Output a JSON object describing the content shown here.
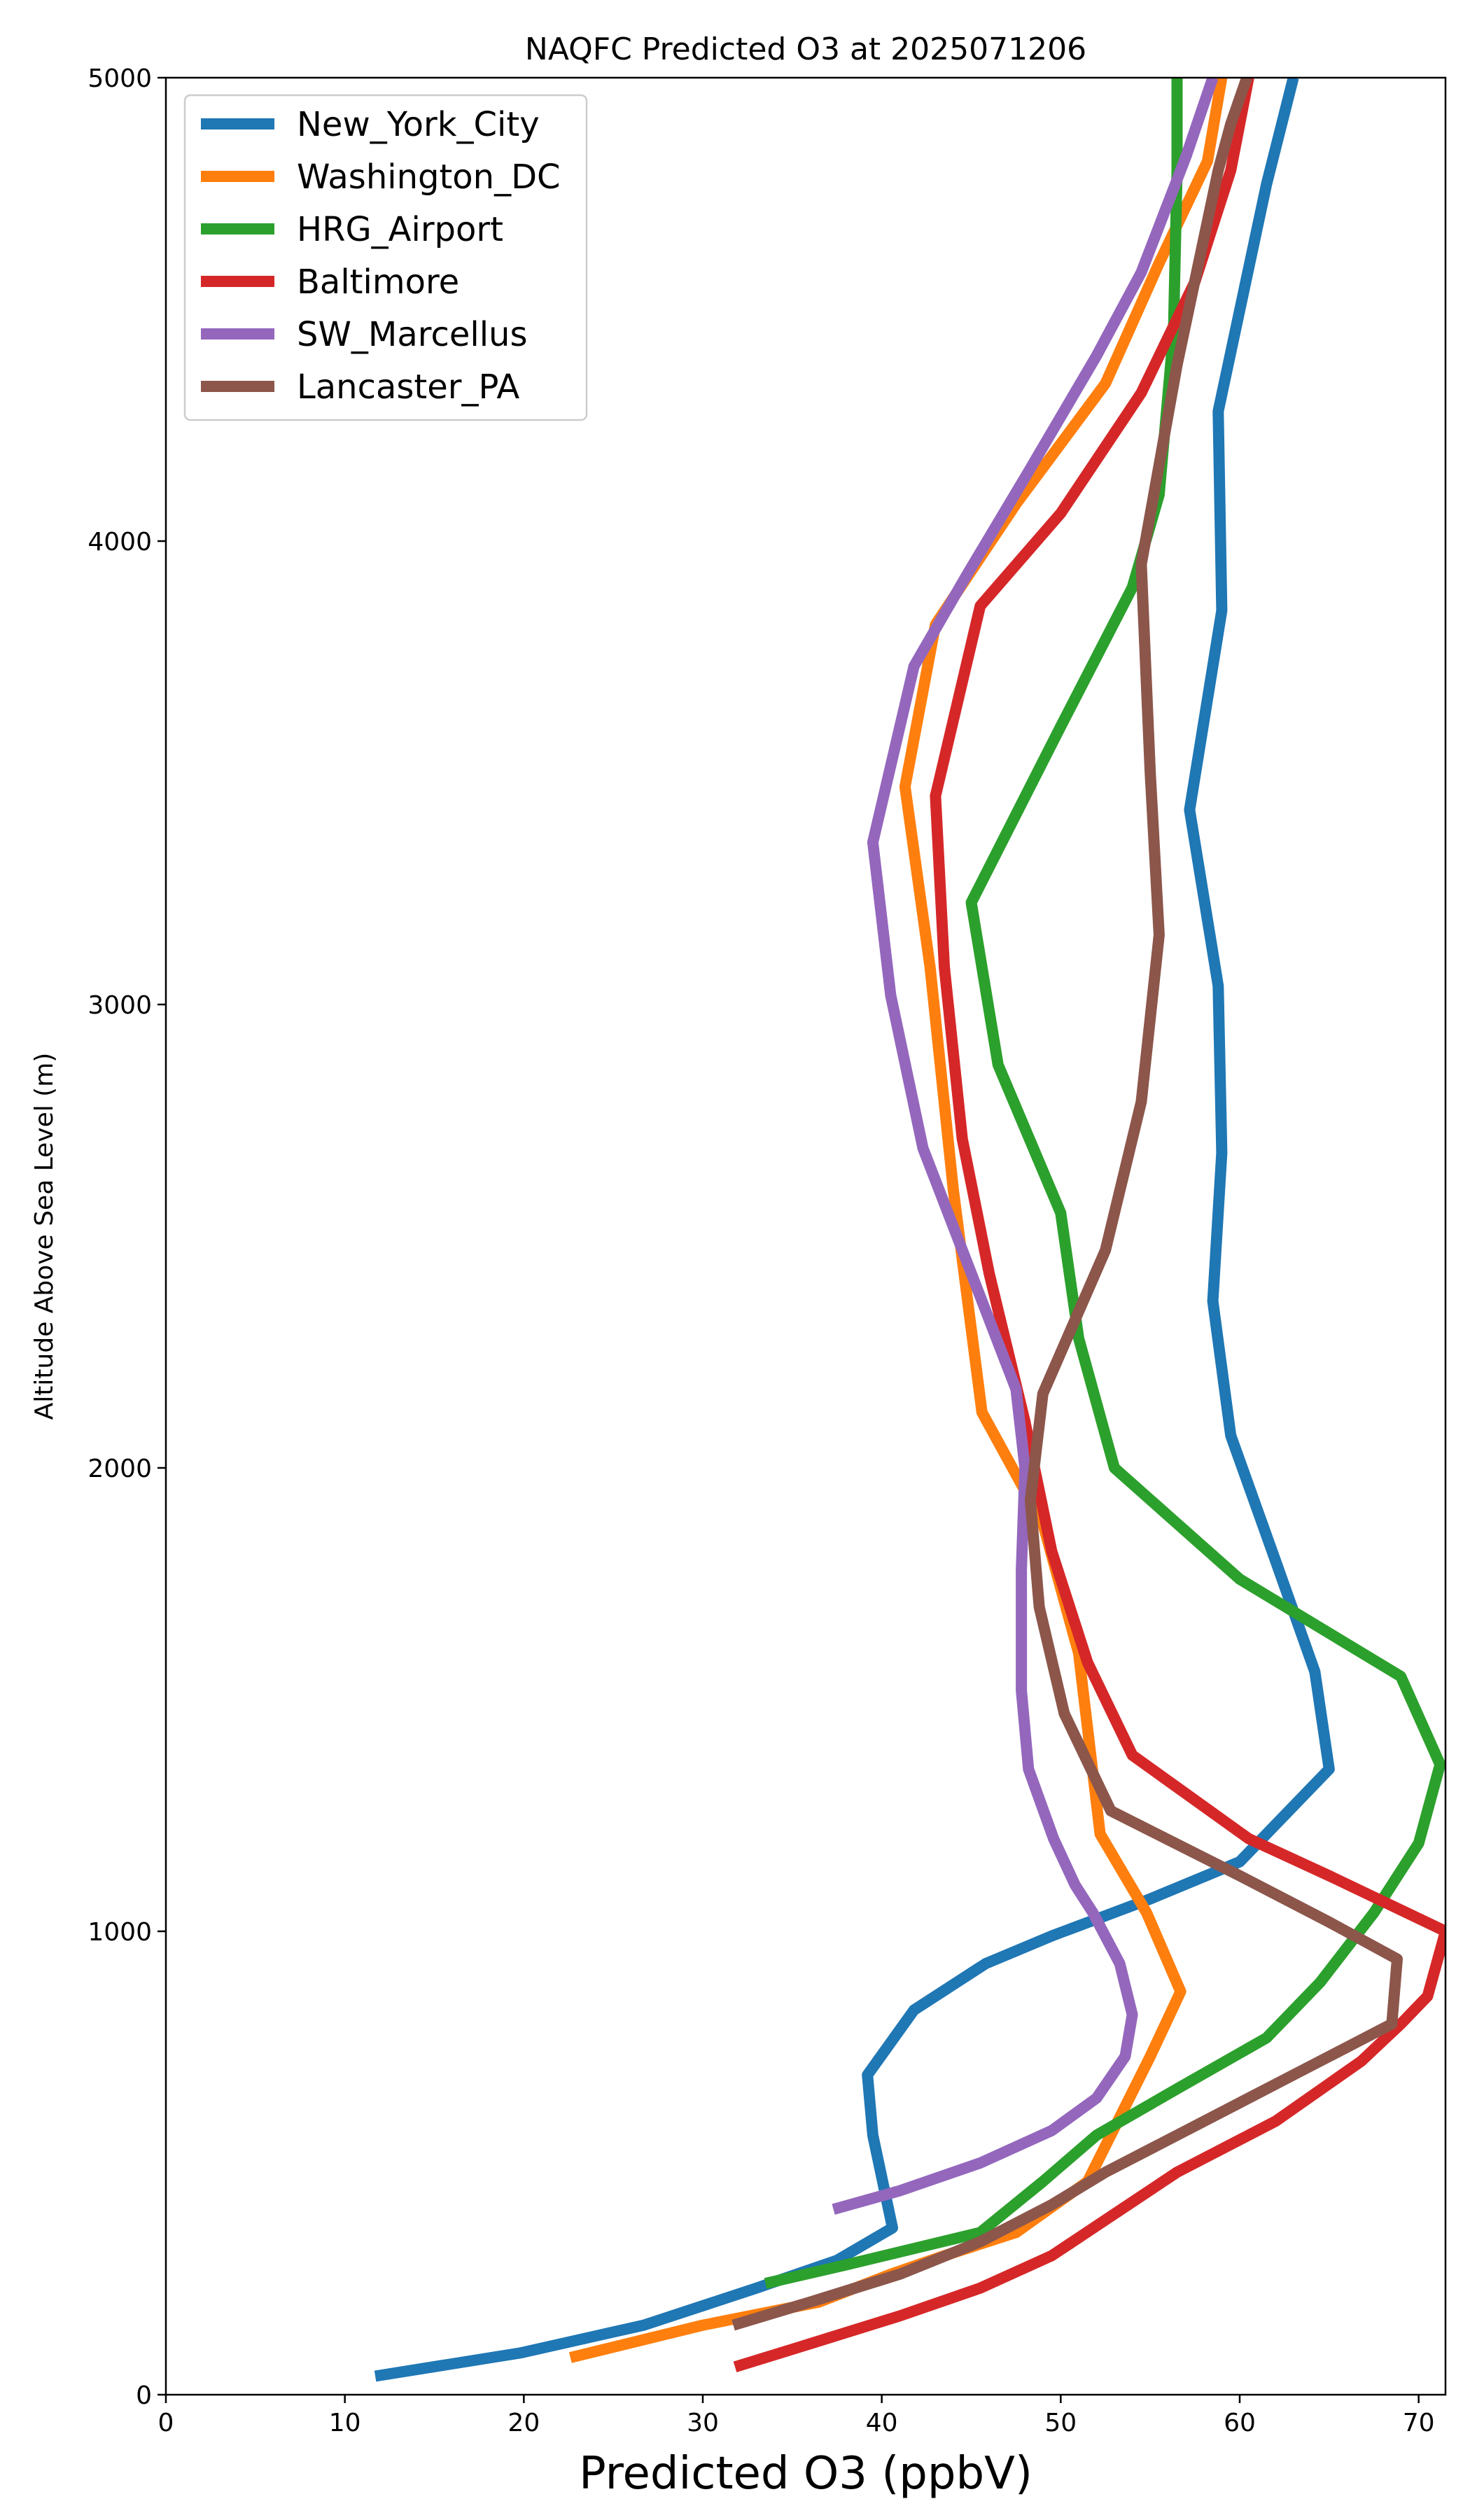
{
  "chart_data": {
    "type": "line",
    "title": "NAQFC Predicted O3 at 2025071206",
    "xlabel": "Predicted O3 (ppbV)",
    "ylabel": "Altitude Above Sea Level (m)",
    "xlim": [
      0,
      71.5
    ],
    "ylim": [
      0,
      5000
    ],
    "xticks": [
      0,
      10,
      20,
      30,
      40,
      50,
      60,
      70
    ],
    "yticks": [
      0,
      1000,
      2000,
      3000,
      4000,
      5000
    ],
    "grid": false,
    "legend_position": "top-left",
    "series": [
      {
        "name": "New_York_City",
        "color": "#1f77b4",
        "points": [
          [
            11.7,
            40
          ],
          [
            19.8,
            90
          ],
          [
            26.7,
            150
          ],
          [
            33,
            230
          ],
          [
            37.5,
            290
          ],
          [
            40.6,
            360
          ],
          [
            39.5,
            560
          ],
          [
            39.2,
            690
          ],
          [
            41.8,
            830
          ],
          [
            45.8,
            930
          ],
          [
            49.5,
            990
          ],
          [
            55,
            1070
          ],
          [
            60,
            1150
          ],
          [
            65,
            1350
          ],
          [
            64.2,
            1560
          ],
          [
            62,
            1800
          ],
          [
            59.5,
            2070
          ],
          [
            58.5,
            2360
          ],
          [
            59,
            2680
          ],
          [
            58.8,
            3040
          ],
          [
            57.2,
            3420
          ],
          [
            59,
            3850
          ],
          [
            58.8,
            4280
          ],
          [
            61.5,
            4770
          ],
          [
            63,
            5000
          ]
        ]
      },
      {
        "name": "Washington_DC",
        "color": "#ff7f0e",
        "points": [
          [
            22.6,
            80
          ],
          [
            30,
            150
          ],
          [
            36.5,
            200
          ],
          [
            40.5,
            260
          ],
          [
            43.5,
            300
          ],
          [
            47.5,
            350
          ],
          [
            51.5,
            460
          ],
          [
            55,
            730
          ],
          [
            56.7,
            870
          ],
          [
            54.8,
            1040
          ],
          [
            52.2,
            1210
          ],
          [
            51,
            1600
          ],
          [
            49,
            1880
          ],
          [
            45.6,
            2120
          ],
          [
            44,
            2600
          ],
          [
            42.7,
            3080
          ],
          [
            41.3,
            3470
          ],
          [
            43,
            3820
          ],
          [
            47.5,
            4080
          ],
          [
            52.5,
            4340
          ],
          [
            55.5,
            4600
          ],
          [
            58.2,
            4820
          ],
          [
            59,
            5000
          ]
        ]
      },
      {
        "name": "HRG_Airport",
        "color": "#2ca02c",
        "points": [
          [
            33.5,
            240
          ],
          [
            38,
            280
          ],
          [
            45.5,
            350
          ],
          [
            49,
            460
          ],
          [
            52,
            560
          ],
          [
            56.5,
            660
          ],
          [
            61.5,
            770
          ],
          [
            64.5,
            890
          ],
          [
            67.5,
            1040
          ],
          [
            70,
            1190
          ],
          [
            71.2,
            1360
          ],
          [
            69,
            1550
          ],
          [
            60,
            1760
          ],
          [
            53,
            2000
          ],
          [
            51,
            2280
          ],
          [
            50,
            2550
          ],
          [
            46.5,
            2870
          ],
          [
            45,
            3220
          ],
          [
            50,
            3600
          ],
          [
            54,
            3900
          ],
          [
            55.5,
            4100
          ],
          [
            56.3,
            4450
          ],
          [
            56.5,
            4800
          ],
          [
            56.5,
            5000
          ]
        ]
      },
      {
        "name": "Baltimore",
        "color": "#d62728",
        "points": [
          [
            31.8,
            60
          ],
          [
            36,
            110
          ],
          [
            41,
            170
          ],
          [
            45.5,
            230
          ],
          [
            49.5,
            300
          ],
          [
            53,
            390
          ],
          [
            56.5,
            480
          ],
          [
            62,
            590
          ],
          [
            66.8,
            720
          ],
          [
            69,
            800
          ],
          [
            70.5,
            860
          ],
          [
            71.5,
            1000
          ],
          [
            65,
            1120
          ],
          [
            60.5,
            1200
          ],
          [
            54,
            1380
          ],
          [
            51.5,
            1580
          ],
          [
            49.5,
            1820
          ],
          [
            48,
            2100
          ],
          [
            46,
            2420
          ],
          [
            44.5,
            2710
          ],
          [
            43.5,
            3080
          ],
          [
            43,
            3450
          ],
          [
            45.5,
            3860
          ],
          [
            50,
            4060
          ],
          [
            54.5,
            4320
          ],
          [
            57.5,
            4560
          ],
          [
            59.5,
            4800
          ],
          [
            60.5,
            5000
          ]
        ]
      },
      {
        "name": "SW_Marcellus",
        "color": "#9467bd",
        "points": [
          [
            37.3,
            400
          ],
          [
            41,
            440
          ],
          [
            45.5,
            500
          ],
          [
            49.5,
            570
          ],
          [
            52,
            640
          ],
          [
            53.6,
            730
          ],
          [
            54,
            820
          ],
          [
            53.3,
            930
          ],
          [
            51.8,
            1040
          ],
          [
            50.8,
            1100
          ],
          [
            49.6,
            1200
          ],
          [
            48.2,
            1350
          ],
          [
            47.8,
            1520
          ],
          [
            47.8,
            1780
          ],
          [
            48,
            2000
          ],
          [
            47.5,
            2170
          ],
          [
            45.5,
            2370
          ],
          [
            42.3,
            2690
          ],
          [
            40.5,
            3020
          ],
          [
            39.5,
            3350
          ],
          [
            41.8,
            3730
          ],
          [
            44.8,
            3930
          ],
          [
            48.2,
            4150
          ],
          [
            52,
            4400
          ],
          [
            54.5,
            4580
          ],
          [
            57,
            4830
          ],
          [
            58.5,
            5000
          ]
        ]
      },
      {
        "name": "Lancaster_PA",
        "color": "#8c564b",
        "points": [
          [
            31.7,
            150
          ],
          [
            36,
            200
          ],
          [
            41,
            260
          ],
          [
            45.5,
            330
          ],
          [
            49.5,
            410
          ],
          [
            52.5,
            480
          ],
          [
            57,
            570
          ],
          [
            63,
            690
          ],
          [
            66.5,
            760
          ],
          [
            68.5,
            800
          ],
          [
            68.8,
            940
          ],
          [
            65,
            1020
          ],
          [
            60,
            1120
          ],
          [
            52.8,
            1260
          ],
          [
            50.2,
            1470
          ],
          [
            48.8,
            1700
          ],
          [
            48.3,
            1930
          ],
          [
            49,
            2160
          ],
          [
            52.5,
            2470
          ],
          [
            54.5,
            2790
          ],
          [
            55.5,
            3150
          ],
          [
            55,
            3500
          ],
          [
            54.5,
            3950
          ],
          [
            56.5,
            4380
          ],
          [
            58.8,
            4800
          ],
          [
            59.5,
            4900
          ],
          [
            60.4,
            5000
          ]
        ]
      }
    ]
  }
}
